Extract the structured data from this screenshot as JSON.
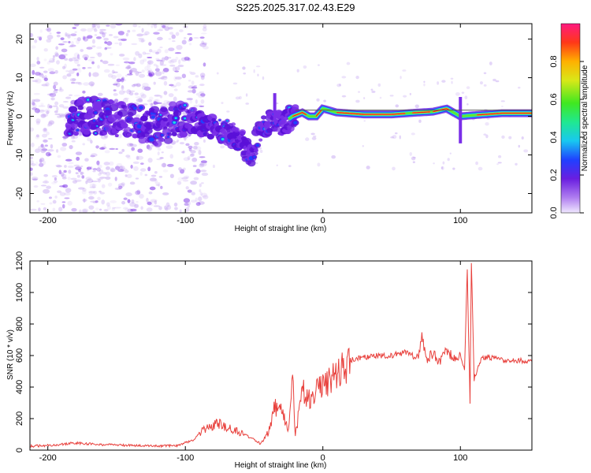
{
  "title": "S225.2025.317.02.43.E29",
  "chart_data": [
    {
      "type": "heatmap",
      "xlabel": "Height of straight line (km)",
      "ylabel": "Frequency (Hz)",
      "xlim": [
        -213,
        152
      ],
      "ylim": [
        -25,
        24
      ],
      "xticks": [
        -200,
        -100,
        0,
        100
      ],
      "yticks": [
        -20,
        -10,
        0,
        10,
        20
      ],
      "colorbar": {
        "label": "Normalized spectral amplitude",
        "range": [
          0,
          1
        ],
        "ticks": [
          "0.0",
          "0.2",
          "0.4",
          "0.6",
          "0.8"
        ],
        "tick_values": [
          0,
          0.2,
          0.4,
          0.6,
          0.8
        ]
      },
      "ridge": {
        "x": [
          -180,
          -160,
          -140,
          -120,
          -100,
          -90,
          -80,
          -70,
          -60,
          -52,
          -45,
          -38,
          -30,
          -22,
          -15,
          -10,
          -5,
          0,
          10,
          30,
          50,
          70,
          80,
          90,
          100,
          110,
          130,
          152
        ],
        "y": [
          0,
          0,
          -1,
          -3,
          0,
          -2,
          -3,
          -4,
          -6,
          -11,
          -3,
          -1,
          -2,
          0,
          1,
          0,
          0,
          2,
          1,
          0.5,
          0.5,
          1,
          1.2,
          2,
          0,
          0.3,
          0.8,
          0.8
        ]
      },
      "scatter_x_range": [
        -213,
        -85
      ]
    },
    {
      "type": "line",
      "xlabel": "Height of straight line (km)",
      "ylabel": "SNR (10 * v/v)",
      "xlim": [
        -213,
        152
      ],
      "ylim": [
        0,
        1200
      ],
      "xticks": [
        -200,
        -100,
        0,
        100
      ],
      "yticks": [
        0,
        200,
        400,
        600,
        800,
        1000,
        1200
      ],
      "color": "#e8403c",
      "series": [
        {
          "x": [
            -213,
            -200,
            -180,
            -160,
            -140,
            -120,
            -105,
            -95,
            -85,
            -75,
            -65,
            -55,
            -45,
            -40,
            -35,
            -30,
            -25,
            -22,
            -20,
            -15,
            -10,
            -5,
            0,
            10,
            20,
            30,
            40,
            50,
            60,
            70,
            72,
            75,
            80,
            85,
            90,
            95,
            100,
            103,
            105,
            107,
            108,
            110,
            115,
            120,
            130,
            140,
            152
          ],
          "y": [
            25,
            30,
            45,
            35,
            30,
            25,
            30,
            60,
            140,
            170,
            130,
            90,
            40,
            110,
            280,
            250,
            120,
            450,
            90,
            380,
            330,
            370,
            400,
            470,
            570,
            590,
            600,
            600,
            620,
            600,
            740,
            560,
            620,
            560,
            640,
            580,
            600,
            520,
            1150,
            300,
            1200,
            450,
            580,
            590,
            570,
            570,
            560
          ]
        }
      ]
    }
  ]
}
